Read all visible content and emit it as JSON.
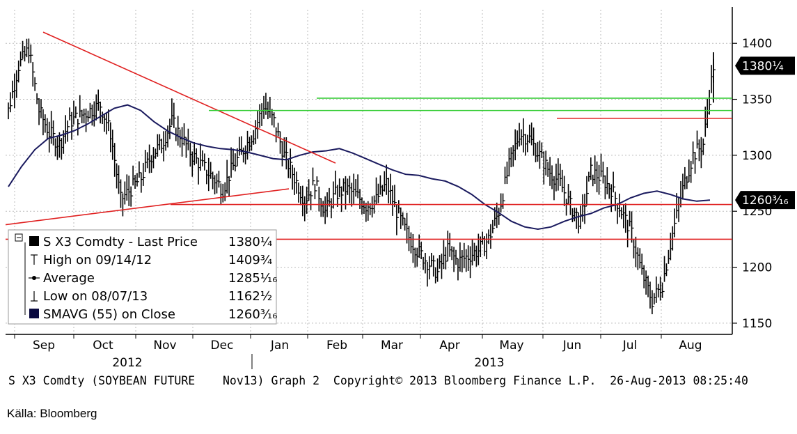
{
  "chart_data": {
    "type": "ohlc",
    "title": "",
    "y_ticks": [
      1150,
      1200,
      1250,
      1300,
      1350,
      1400
    ],
    "ylim": [
      1140,
      1430
    ],
    "y_axis_side": "right",
    "x_months": [
      "Sep",
      "Oct",
      "Nov",
      "Dec",
      "Jan",
      "Feb",
      "Mar",
      "Apr",
      "May",
      "Jun",
      "Jul",
      "Aug"
    ],
    "x_years": [
      "2012",
      "2013"
    ],
    "grid": true,
    "series": [
      {
        "name": "S X3 Comdty - Last Price",
        "value_label": "1380¼",
        "color": "#000000",
        "approx_closes_weekly": [
          1340,
          1380,
          1395,
          1340,
          1320,
          1310,
          1330,
          1335,
          1340,
          1345,
          1320,
          1260,
          1270,
          1280,
          1300,
          1310,
          1330,
          1315,
          1300,
          1290,
          1280,
          1270,
          1290,
          1305,
          1320,
          1345,
          1330,
          1300,
          1280,
          1260,
          1275,
          1250,
          1265,
          1270,
          1265,
          1255,
          1260,
          1275,
          1250,
          1230,
          1215,
          1205,
          1195,
          1215,
          1205,
          1210,
          1215,
          1225,
          1250,
          1290,
          1320,
          1315,
          1300,
          1285,
          1275,
          1255,
          1240,
          1285,
          1280,
          1270,
          1250,
          1230,
          1195,
          1170,
          1185,
          1230,
          1270,
          1300,
          1310,
          1380
        ]
      },
      {
        "name": "SMAVG (55) on Close",
        "value_label": "1260³⁄₁₆",
        "color": "#1a1a5e",
        "approx_values_weekly": [
          1272,
          1290,
          1305,
          1315,
          1318,
          1322,
          1328,
          1335,
          1342,
          1345,
          1340,
          1330,
          1322,
          1316,
          1311,
          1308,
          1306,
          1305,
          1303,
          1300,
          1297,
          1296,
          1300,
          1303,
          1304,
          1306,
          1302,
          1297,
          1292,
          1287,
          1283,
          1282,
          1279,
          1277,
          1272,
          1265,
          1256,
          1249,
          1241,
          1236,
          1234,
          1236,
          1241,
          1245,
          1248,
          1253,
          1256,
          1262,
          1266,
          1268,
          1265,
          1261,
          1259,
          1260
        ]
      }
    ],
    "lines": [
      {
        "name": "Trend line down",
        "color": "#e02020",
        "from": [
          "Sep",
          1410
        ],
        "to": [
          "Jan",
          1293
        ]
      },
      {
        "name": "Trend line up",
        "color": "#e02020",
        "from": [
          "Sep",
          1238
        ],
        "to": [
          "Jan",
          1270
        ]
      },
      {
        "name": "Resistance",
        "color": "#33cc33",
        "value": 1351
      },
      {
        "name": "Resistance",
        "color": "#33cc33",
        "value": 1340
      },
      {
        "name": "Resistance",
        "color": "#e02020",
        "value": 1333
      },
      {
        "name": "Support",
        "color": "#e02020",
        "value": 1256
      },
      {
        "name": "Support",
        "color": "#e02020",
        "value": 1225
      }
    ],
    "price_tags": [
      {
        "label": "1380¼",
        "value": 1380
      },
      {
        "label": "1260³⁄₁₆",
        "value": 1260
      }
    ],
    "legend": {
      "placement": "bottom-left",
      "entries": [
        {
          "label": "S X3 Comdty - Last Price",
          "value": "1380¼",
          "marker": "square-black"
        },
        {
          "label": "High on 09/14/12",
          "value": "1409¾",
          "marker": "high"
        },
        {
          "label": "Average",
          "value": "1285⅟₁₆",
          "marker": "average"
        },
        {
          "label": "Low on 08/07/13",
          "value": "1162½",
          "marker": "low"
        },
        {
          "label": "SMAVG (55) on Close",
          "value": "1260³⁄₁₆",
          "marker": "square-navy"
        }
      ]
    }
  },
  "footer_text": "S X3 Comdty (SOYBEAN FUTURE    Nov13) Graph 2  Copyright© 2013 Bloomberg Finance L.P.  26-Aug-2013 08:25:40",
  "source_text": "Källa: Bloomberg",
  "colors": {
    "red": "#e02020",
    "green": "#33cc33",
    "navy": "#1a1a5e",
    "grid": "#bbbbbb"
  }
}
